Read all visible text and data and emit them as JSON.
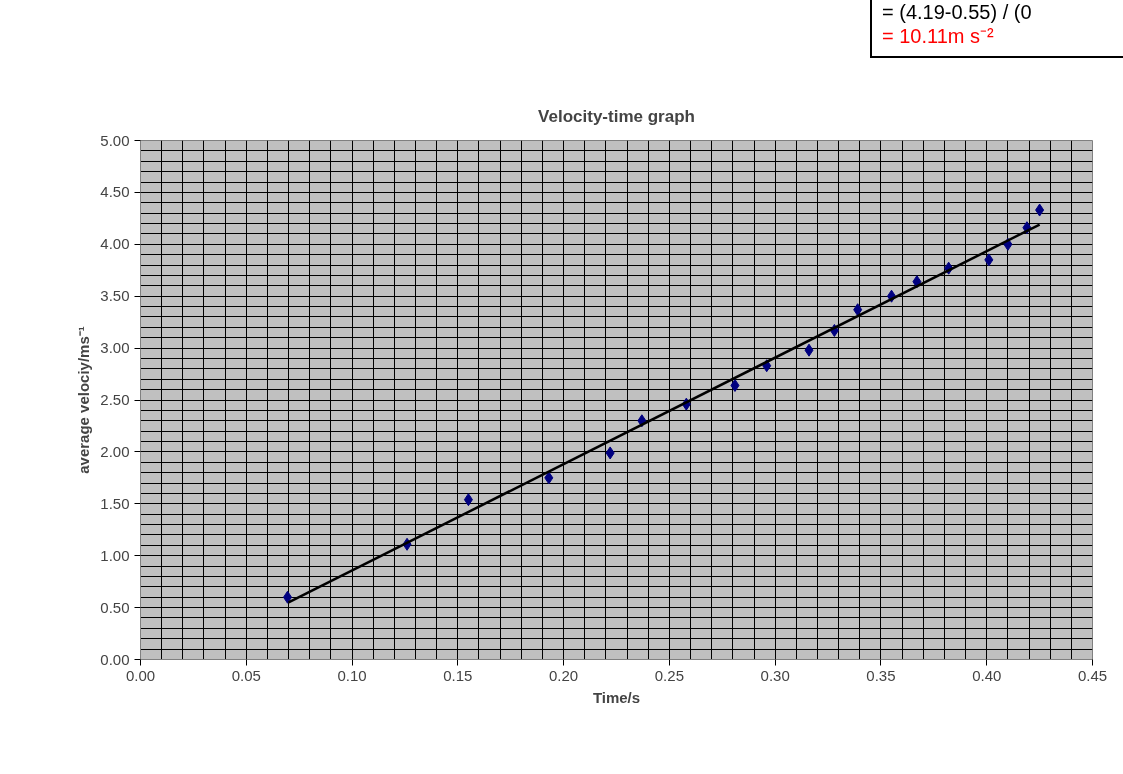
{
  "chart_data": {
    "type": "scatter",
    "title": "Velocity-time graph",
    "xlabel": "Time/s",
    "ylabel": "average velociy/ms⁻¹",
    "annotations": [
      "= (4.19-0.55) / (0",
      "= 10.11m s⁻²"
    ],
    "xlim": [
      0,
      0.45
    ],
    "xticks": [
      {
        "value": 0,
        "label": "0.00"
      },
      {
        "value": 0.05,
        "label": "0.05"
      },
      {
        "value": 0.1,
        "label": "0.10"
      },
      {
        "value": 0.15,
        "label": "0.15"
      },
      {
        "value": 0.2,
        "label": "0.20"
      },
      {
        "value": 0.25,
        "label": "0.25"
      },
      {
        "value": 0.3,
        "label": "0.30"
      },
      {
        "value": 0.35,
        "label": "0.35"
      },
      {
        "value": 0.4,
        "label": "0.40"
      },
      {
        "value": 0.45,
        "label": "0.45"
      }
    ],
    "ylim": [
      0,
      5
    ],
    "yticks": [
      {
        "value": 0,
        "label": "0.00"
      },
      {
        "value": 0.5,
        "label": "0.50"
      },
      {
        "value": 1,
        "label": "1.00"
      },
      {
        "value": 1.5,
        "label": "1.50"
      },
      {
        "value": 2,
        "label": "2.00"
      },
      {
        "value": 2.5,
        "label": "2.50"
      },
      {
        "value": 3,
        "label": "3.00"
      },
      {
        "value": 3.5,
        "label": "3.50"
      },
      {
        "value": 4,
        "label": "4.00"
      },
      {
        "value": 4.5,
        "label": "4.50"
      },
      {
        "value": 5,
        "label": "5.00"
      }
    ],
    "grid": true,
    "marker": "diamond",
    "series": [
      {
        "color": "#000080",
        "x": [
          0.0695,
          0.126,
          0.155,
          0.193,
          0.222,
          0.237,
          0.258,
          0.281,
          0.296,
          0.316,
          0.328,
          0.339,
          0.355,
          0.367,
          0.382,
          0.401,
          0.41,
          0.419,
          0.425
        ],
        "values": [
          0.6,
          1.11,
          1.54,
          1.75,
          1.99,
          2.3,
          2.46,
          2.64,
          2.83,
          2.98,
          3.17,
          3.37,
          3.5,
          3.64,
          3.77,
          3.85,
          4.0,
          4.16,
          4.33
        ]
      },
      {
        "type": "line",
        "color": "#000000",
        "marker": "none",
        "line_style": "solid",
        "x": [
          0.07,
          0.425
        ],
        "values": [
          0.55,
          4.19
        ]
      }
    ]
  }
}
